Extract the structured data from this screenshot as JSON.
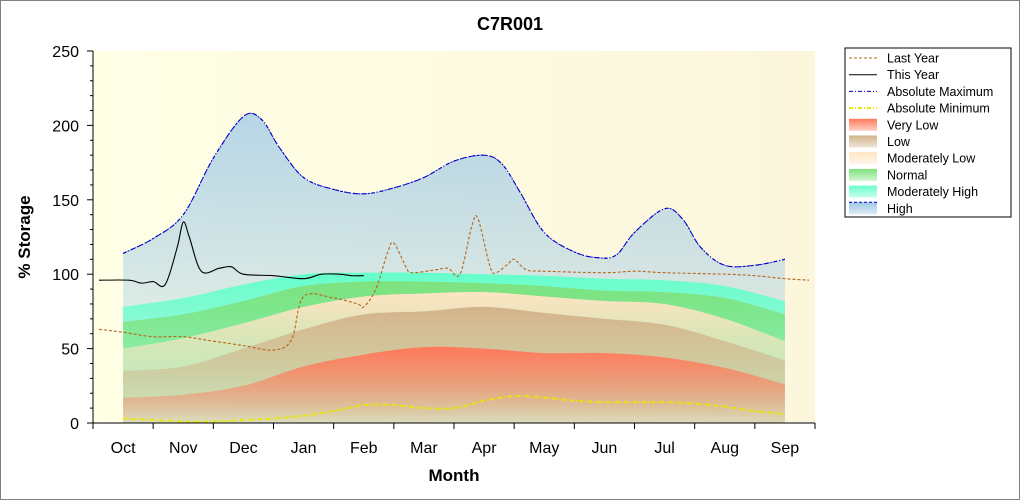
{
  "chart_data": {
    "type": "area",
    "title": "C7R001",
    "xlabel": "Month",
    "ylabel": "% Storage",
    "ylim": [
      0,
      250
    ],
    "yticks": [
      0,
      50,
      100,
      150,
      200,
      250
    ],
    "categories": [
      "Oct",
      "Nov",
      "Dec",
      "Jan",
      "Feb",
      "Mar",
      "Apr",
      "May",
      "Jun",
      "Jul",
      "Aug",
      "Sep"
    ],
    "x_range": [
      -0.5,
      11.5
    ],
    "legend_position": "right",
    "series": [
      {
        "name": "Last Year",
        "kind": "line",
        "style": "dashed",
        "color": "#b5651d",
        "points": [
          [
            -0.4,
            63
          ],
          [
            0,
            61
          ],
          [
            0.5,
            58
          ],
          [
            1,
            58
          ],
          [
            1.5,
            55
          ],
          [
            2,
            52
          ],
          [
            2.5,
            49
          ],
          [
            2.8,
            56
          ],
          [
            3,
            85
          ],
          [
            3.5,
            84
          ],
          [
            3.9,
            80
          ],
          [
            4,
            78
          ],
          [
            4.2,
            90
          ],
          [
            4.4,
            115
          ],
          [
            4.5,
            121
          ],
          [
            4.7,
            105
          ],
          [
            4.8,
            101
          ],
          [
            5.2,
            103
          ],
          [
            5.4,
            104
          ],
          [
            5.6,
            100
          ],
          [
            5.8,
            133
          ],
          [
            5.9,
            137
          ],
          [
            6.1,
            105
          ],
          [
            6.2,
            101
          ],
          [
            6.4,
            107
          ],
          [
            6.5,
            110
          ],
          [
            6.7,
            103
          ],
          [
            7,
            102
          ],
          [
            8,
            101
          ],
          [
            8.5,
            102
          ],
          [
            9,
            101
          ],
          [
            10,
            100
          ],
          [
            10.5,
            99
          ],
          [
            11,
            97
          ],
          [
            11.4,
            96
          ]
        ]
      },
      {
        "name": "This Year",
        "kind": "line",
        "style": "solid",
        "color": "#000000",
        "points": [
          [
            -0.4,
            96
          ],
          [
            0.1,
            96
          ],
          [
            0.3,
            94
          ],
          [
            0.5,
            95
          ],
          [
            0.7,
            93
          ],
          [
            0.9,
            118
          ],
          [
            1,
            135
          ],
          [
            1.1,
            125
          ],
          [
            1.3,
            102
          ],
          [
            1.6,
            104
          ],
          [
            1.8,
            105
          ],
          [
            2,
            100
          ],
          [
            2.5,
            99
          ],
          [
            3,
            97
          ],
          [
            3.3,
            100
          ],
          [
            3.6,
            100
          ],
          [
            3.8,
            99
          ],
          [
            4,
            99
          ]
        ]
      },
      {
        "name": "Absolute Maximum",
        "kind": "line",
        "style": "dashdot",
        "color": "#0000cc",
        "points": [
          [
            0,
            114
          ],
          [
            0.5,
            124
          ],
          [
            1,
            140
          ],
          [
            1.5,
            178
          ],
          [
            2,
            206
          ],
          [
            2.3,
            204
          ],
          [
            2.6,
            185
          ],
          [
            3,
            165
          ],
          [
            3.5,
            157
          ],
          [
            4,
            154
          ],
          [
            4.5,
            158
          ],
          [
            5,
            165
          ],
          [
            5.5,
            176
          ],
          [
            6,
            180
          ],
          [
            6.3,
            174
          ],
          [
            6.6,
            155
          ],
          [
            7,
            128
          ],
          [
            7.5,
            115
          ],
          [
            7.9,
            111
          ],
          [
            8.2,
            113
          ],
          [
            8.5,
            128
          ],
          [
            9,
            144
          ],
          [
            9.3,
            137
          ],
          [
            9.6,
            118
          ],
          [
            10,
            106
          ],
          [
            10.5,
            106
          ],
          [
            11,
            110
          ]
        ]
      },
      {
        "name": "Absolute Minimum",
        "kind": "line",
        "style": "dashdot",
        "color": "#e8e800",
        "points": [
          [
            0,
            3
          ],
          [
            0.5,
            2
          ],
          [
            1,
            1
          ],
          [
            1.5,
            1
          ],
          [
            2,
            2
          ],
          [
            2.5,
            3
          ],
          [
            3,
            5
          ],
          [
            3.5,
            8
          ],
          [
            4,
            12
          ],
          [
            4.5,
            12
          ],
          [
            5,
            10
          ],
          [
            5.5,
            10
          ],
          [
            6,
            15
          ],
          [
            6.5,
            18
          ],
          [
            7,
            17
          ],
          [
            7.5,
            15
          ],
          [
            8,
            14
          ],
          [
            8.5,
            14
          ],
          [
            9,
            14
          ],
          [
            9.5,
            13
          ],
          [
            10,
            11
          ],
          [
            10.5,
            8
          ],
          [
            11,
            6
          ]
        ]
      },
      {
        "name": "Very Low",
        "kind": "band",
        "color": "#ff7a5c",
        "x": [
          0,
          1,
          2,
          3,
          4,
          5,
          6,
          7,
          8,
          9,
          10,
          11
        ],
        "values": [
          17,
          19,
          25,
          38,
          46,
          51,
          50,
          47,
          47,
          44,
          37,
          26
        ]
      },
      {
        "name": "Low",
        "kind": "band",
        "color": "#d2b48c",
        "x": [
          0,
          1,
          2,
          3,
          4,
          5,
          6,
          7,
          8,
          9,
          10,
          11
        ],
        "values": [
          35,
          38,
          50,
          63,
          73,
          75,
          78,
          74,
          70,
          66,
          55,
          42
        ]
      },
      {
        "name": "Moderately Low",
        "kind": "band",
        "color": "#ffe4c4",
        "x": [
          0,
          1,
          2,
          3,
          4,
          5,
          6,
          7,
          8,
          9,
          10,
          11
        ],
        "values": [
          50,
          57,
          67,
          78,
          85,
          87,
          88,
          85,
          82,
          80,
          70,
          55
        ]
      },
      {
        "name": "Normal",
        "kind": "band",
        "color": "#7ee27e",
        "x": [
          0,
          1,
          2,
          3,
          4,
          5,
          6,
          7,
          8,
          9,
          10,
          11
        ],
        "values": [
          68,
          73,
          82,
          92,
          95,
          95,
          94,
          92,
          89,
          88,
          84,
          73
        ]
      },
      {
        "name": "Moderately High",
        "kind": "band",
        "color": "#66ffcc",
        "x": [
          0,
          1,
          2,
          3,
          4,
          5,
          6,
          7,
          8,
          9,
          10,
          11
        ],
        "values": [
          78,
          84,
          93,
          100,
          101,
          101,
          100,
          99,
          97,
          96,
          92,
          82
        ]
      },
      {
        "name": "High",
        "kind": "band",
        "color": "#9ec8e6",
        "x": [
          0,
          0.5,
          1,
          1.5,
          2,
          2.3,
          2.6,
          3,
          3.5,
          4,
          4.5,
          5,
          5.5,
          6,
          6.3,
          6.6,
          7,
          7.5,
          7.9,
          8.2,
          8.5,
          9,
          9.3,
          9.6,
          10,
          10.5,
          11
        ],
        "values": [
          114,
          124,
          140,
          178,
          206,
          204,
          185,
          165,
          157,
          154,
          158,
          165,
          176,
          180,
          174,
          155,
          128,
          115,
          111,
          113,
          128,
          144,
          137,
          118,
          106,
          106,
          110
        ]
      }
    ]
  }
}
